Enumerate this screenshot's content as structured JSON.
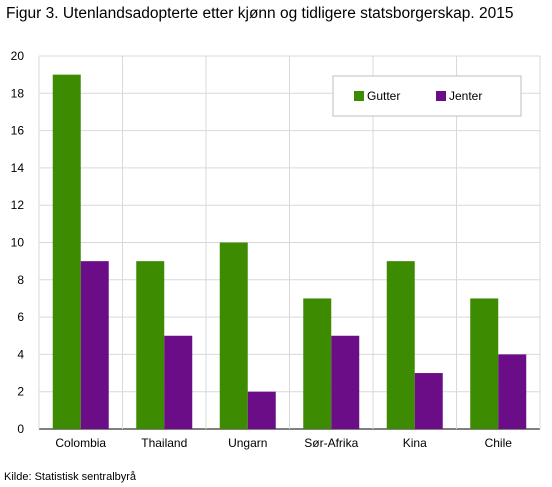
{
  "title": "Figur 3. Utenlandsadopterte etter kjønn og tidligere statsborgerskap. 2015",
  "source": "Kilde: Statistisk sentralbyrå",
  "chart_data": {
    "type": "bar",
    "categories": [
      "Colombia",
      "Thailand",
      "Ungarn",
      "Sør-Afrika",
      "Kina",
      "Chile"
    ],
    "series": [
      {
        "name": "Gutter",
        "color": "#3d8b00",
        "values": [
          19,
          9,
          10,
          7,
          9,
          7
        ]
      },
      {
        "name": "Jenter",
        "color": "#6b0d87",
        "values": [
          9,
          5,
          2,
          5,
          3,
          4
        ]
      }
    ],
    "ylim": [
      0,
      20
    ],
    "yticks": [
      0,
      2,
      4,
      6,
      8,
      10,
      12,
      14,
      16,
      18,
      20
    ],
    "grid": true,
    "legend_position": "top-right"
  }
}
